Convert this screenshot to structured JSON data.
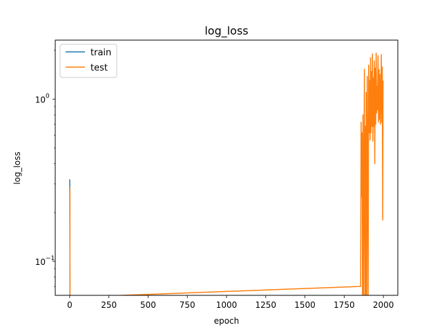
{
  "chart_data": {
    "type": "line",
    "title": "log_loss",
    "xlabel": "epoch",
    "ylabel": "log_loss",
    "xscale": "linear",
    "yscale": "log",
    "xlim": [
      -92,
      2092
    ],
    "ylim": [
      0.0617,
      2.31
    ],
    "grid": false,
    "legend_position": "top-left",
    "x_ticks": [
      0,
      250,
      500,
      750,
      1000,
      1250,
      1500,
      1750,
      2000
    ],
    "x_tick_labels": [
      "0",
      "250",
      "500",
      "750",
      "1000",
      "1250",
      "1500",
      "1750",
      "2000"
    ],
    "y_major_ticks": [
      0.1,
      1.0
    ],
    "y_tick_labels": [
      "10",
      "10"
    ],
    "y_tick_exponents": [
      "−1",
      "0"
    ],
    "y_minor_ticks": [
      0.07,
      0.08,
      0.09,
      0.2,
      0.3,
      0.4,
      0.5,
      0.6,
      0.7,
      0.8,
      0.9,
      2.0
    ],
    "series": [
      {
        "name": "train",
        "color": "#1f77b4",
        "points": [
          [
            0,
            0.32
          ],
          [
            1,
            0.29
          ],
          [
            2,
            0.06
          ]
        ]
      },
      {
        "name": "test",
        "color": "#ff7f0e",
        "points": [
          [
            0,
            0.29
          ],
          [
            1,
            0.27
          ],
          [
            2,
            0.06
          ],
          [
            1855,
            0.07
          ],
          [
            1858,
            0.72
          ],
          [
            1861,
            0.25
          ],
          [
            1864,
            0.62
          ],
          [
            1867,
            0.06
          ],
          [
            1870,
            0.8
          ],
          [
            1873,
            0.06
          ],
          [
            1876,
            0.3
          ],
          [
            1879,
            1.53
          ],
          [
            1882,
            0.06
          ],
          [
            1885,
            0.68
          ],
          [
            1888,
            0.06
          ],
          [
            1891,
            1.1
          ],
          [
            1894,
            0.06
          ],
          [
            1897,
            1.38
          ],
          [
            1900,
            0.4
          ],
          [
            1903,
            0.06
          ],
          [
            1906,
            1.62
          ],
          [
            1909,
            0.62
          ],
          [
            1912,
            1.3
          ],
          [
            1915,
            0.56
          ],
          [
            1918,
            1.8
          ],
          [
            1921,
            0.62
          ],
          [
            1924,
            1.48
          ],
          [
            1927,
            0.68
          ],
          [
            1930,
            1.9
          ],
          [
            1933,
            0.55
          ],
          [
            1936,
            1.35
          ],
          [
            1939,
            0.68
          ],
          [
            1942,
            1.72
          ],
          [
            1945,
            0.4
          ],
          [
            1948,
            1.55
          ],
          [
            1951,
            0.7
          ],
          [
            1954,
            1.92
          ],
          [
            1957,
            0.82
          ],
          [
            1960,
            1.2
          ],
          [
            1963,
            0.86
          ],
          [
            1966,
            1.85
          ],
          [
            1969,
            0.72
          ],
          [
            1972,
            1.52
          ],
          [
            1975,
            0.75
          ],
          [
            1978,
            1.42
          ],
          [
            1981,
            0.7
          ],
          [
            1984,
            0.96
          ],
          [
            1987,
            1.88
          ],
          [
            1990,
            0.72
          ],
          [
            1993,
            1.58
          ],
          [
            1996,
            0.18
          ],
          [
            1998,
            1.3
          ]
        ]
      }
    ]
  }
}
